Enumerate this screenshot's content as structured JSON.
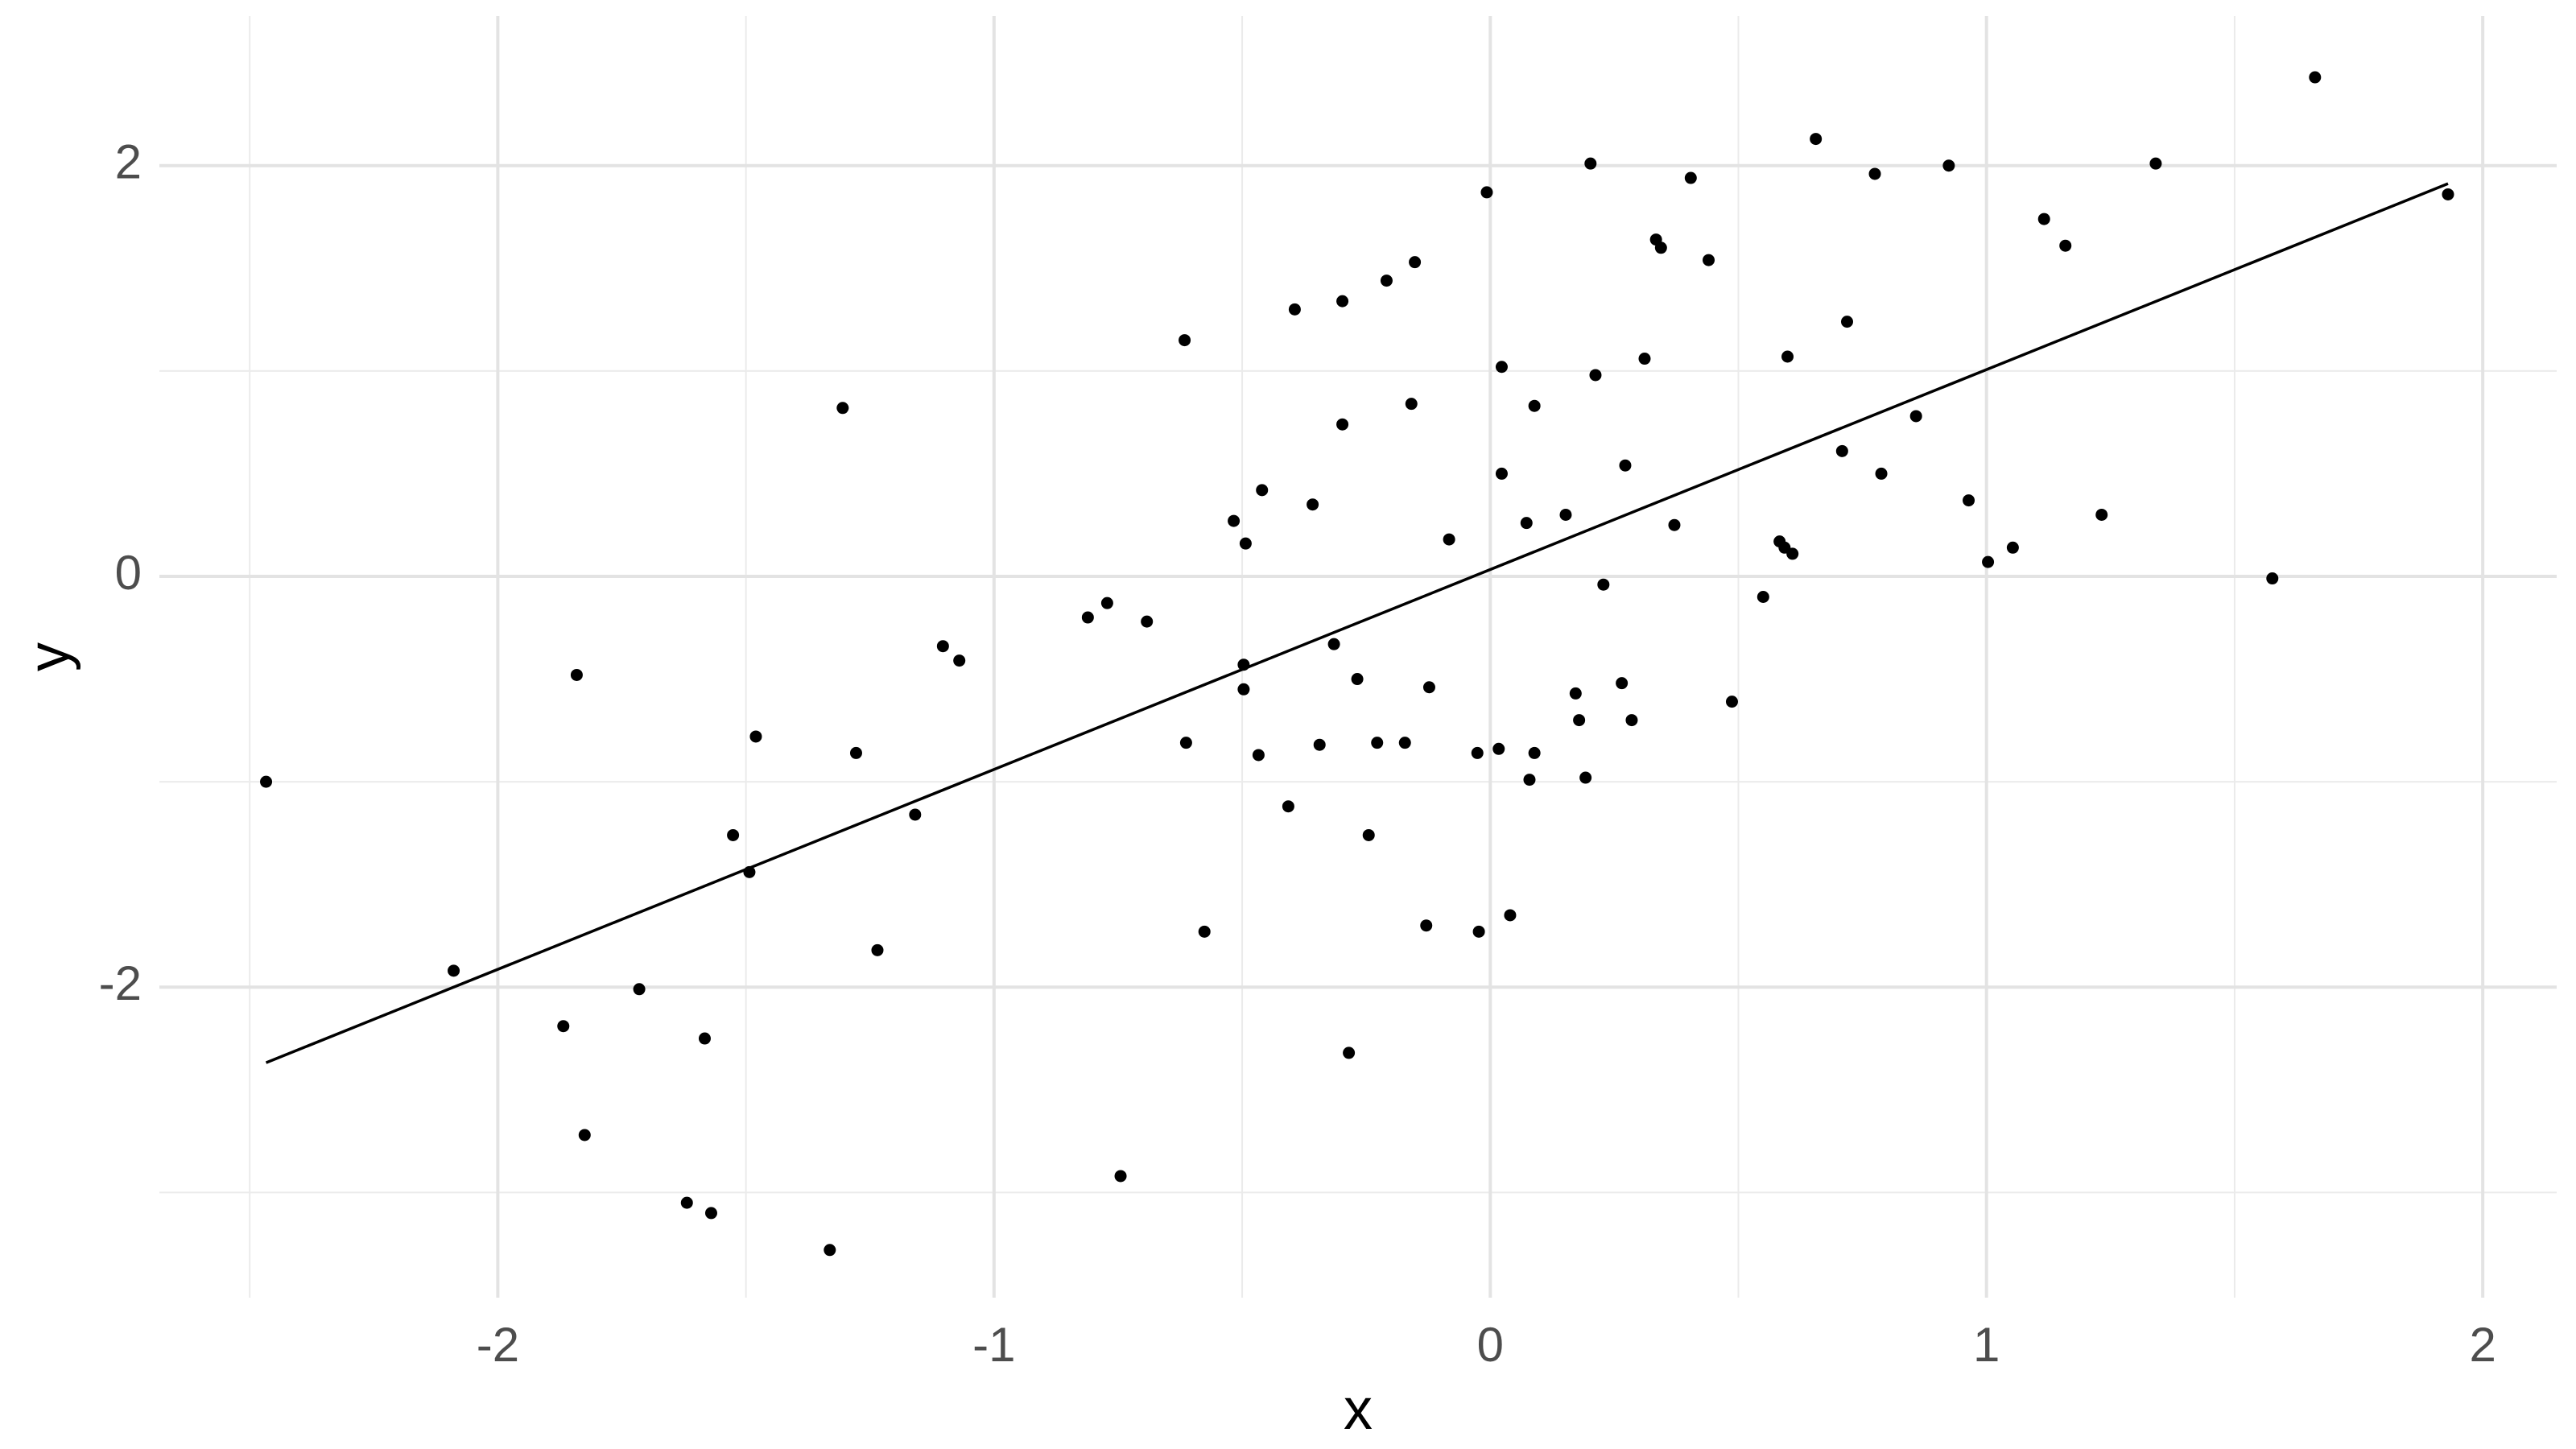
{
  "chart_data": {
    "type": "scatter",
    "x_label": "x",
    "y_label": "y",
    "xlim": [
      -2.682,
      2.149
    ],
    "ylim": [
      -3.512,
      2.728
    ],
    "xticks": [
      -2,
      -1,
      0,
      1,
      2
    ],
    "yticks": [
      -2,
      0,
      2
    ],
    "x_minor_breaks": [
      -2.5,
      -1.5,
      -0.5,
      0.5,
      1.5
    ],
    "y_minor_breaks": [
      -3,
      -1,
      1
    ],
    "grid": true,
    "color": "#000000",
    "fit": {
      "x": [
        -2.467,
        1.93
      ],
      "y": [
        -2.368,
        1.912
      ],
      "color": "#000000"
    },
    "x": [
      -2.467,
      -2.089,
      -1.841,
      -1.868,
      -1.825,
      -1.715,
      -1.619,
      -1.57,
      -1.583,
      -1.526,
      -1.493,
      -1.48,
      -1.331,
      -1.305,
      -1.278,
      -1.235,
      -1.159,
      -1.103,
      -1.07,
      -0.811,
      -0.772,
      -0.745,
      -0.692,
      -0.616,
      -0.613,
      -0.576,
      -0.517,
      -0.497,
      -0.493,
      -0.497,
      -0.467,
      -0.46,
      -0.407,
      -0.394,
      -0.358,
      -0.344,
      -0.315,
      -0.298,
      -0.298,
      -0.285,
      -0.268,
      -0.245,
      -0.228,
      -0.209,
      -0.172,
      -0.159,
      -0.152,
      -0.129,
      -0.123,
      -0.083,
      -0.026,
      -0.023,
      -0.007,
      0.017,
      0.023,
      0.023,
      0.04,
      0.073,
      0.079,
      0.089,
      0.089,
      0.152,
      0.172,
      0.179,
      0.192,
      0.202,
      0.212,
      0.228,
      0.265,
      0.272,
      0.285,
      0.311,
      0.334,
      0.344,
      0.371,
      0.404,
      0.44,
      0.487,
      0.55,
      0.583,
      0.593,
      0.599,
      0.609,
      0.656,
      0.709,
      0.719,
      0.775,
      0.788,
      0.858,
      0.924,
      0.964,
      1.003,
      1.053,
      1.116,
      1.159,
      1.232,
      1.341,
      1.576,
      1.662,
      1.93
    ],
    "y": [
      -1.0,
      -1.92,
      -0.48,
      -2.19,
      -2.72,
      -2.01,
      -3.05,
      -3.1,
      -2.25,
      -1.26,
      -1.44,
      -0.78,
      -3.28,
      0.82,
      -0.86,
      -1.82,
      -1.16,
      -0.34,
      -0.41,
      -0.2,
      -0.13,
      -2.92,
      -0.22,
      1.15,
      -0.81,
      -1.73,
      0.27,
      -0.43,
      0.16,
      -0.55,
      -0.87,
      0.42,
      -1.12,
      1.3,
      0.35,
      -0.82,
      -0.33,
      1.34,
      0.74,
      -2.32,
      -0.5,
      -1.26,
      -0.81,
      1.44,
      -0.81,
      0.84,
      1.53,
      -1.7,
      -0.54,
      0.18,
      -0.86,
      -1.73,
      1.87,
      -0.84,
      0.5,
      1.02,
      -1.65,
      0.26,
      -0.99,
      -0.86,
      0.83,
      0.3,
      -0.57,
      -0.7,
      -0.98,
      2.01,
      0.98,
      -0.04,
      -0.52,
      0.54,
      -0.7,
      1.06,
      1.64,
      1.6,
      0.25,
      1.94,
      1.54,
      -0.61,
      -0.1,
      0.17,
      0.14,
      1.07,
      0.11,
      2.13,
      0.61,
      1.24,
      1.96,
      0.5,
      0.78,
      2.0,
      0.37,
      0.07,
      0.14,
      1.74,
      1.61,
      0.3,
      2.01,
      -0.01,
      2.43,
      1.86
    ]
  }
}
